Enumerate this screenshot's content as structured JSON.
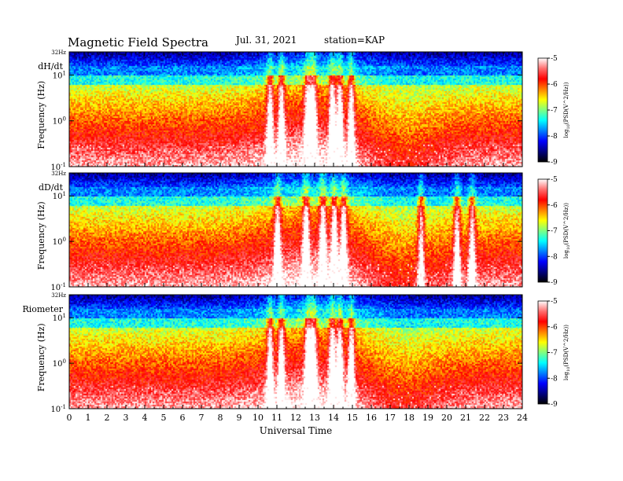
{
  "header": {
    "title": "Magnetic  Field  Spectra",
    "date": "Jul.  31, 2021",
    "station": "station=KAP"
  },
  "colors": {
    "colormap": [
      "#000000",
      "#00007f",
      "#0000ff",
      "#0080ff",
      "#00ffff",
      "#80ff80",
      "#ffff00",
      "#ff8000",
      "#ff0000",
      "#ff6e6e",
      "#ffffff"
    ]
  },
  "chart_data": [
    {
      "type": "heatmap",
      "panel_label": "dH/dt",
      "top_label": "32Hz",
      "ylabel": "Frequency  (Hz)",
      "y_scale": "log",
      "y_ticks": [
        {
          "base": "10",
          "exp": "1"
        },
        {
          "base": "10",
          "exp": "0"
        },
        {
          "base": "10",
          "exp": "-1"
        }
      ],
      "xlim": [
        0,
        24
      ],
      "ylim": [
        0.1,
        32
      ],
      "colorbar": {
        "ticks": [
          "-5",
          "-6",
          "-7",
          "-8",
          "-9"
        ],
        "label": "log10(PSD(V^2/Hz))",
        "range": [
          -9,
          -5
        ]
      },
      "activity_hours": [
        10.6,
        11.2,
        12.6,
        12.9,
        13.9,
        14.3,
        14.9
      ]
    },
    {
      "type": "heatmap",
      "panel_label": "dD/dt",
      "top_label": "32Hz",
      "ylabel": "Frequency  (Hz)",
      "y_scale": "log",
      "y_ticks": [
        {
          "base": "10",
          "exp": "1"
        },
        {
          "base": "10",
          "exp": "0"
        },
        {
          "base": "10",
          "exp": "-1"
        }
      ],
      "xlim": [
        0,
        24
      ],
      "ylim": [
        0.1,
        32
      ],
      "colorbar": {
        "ticks": [
          "-5",
          "-6",
          "-7",
          "-8",
          "-9"
        ],
        "label": "log10(PSD(V^2/Hz))",
        "range": [
          -9,
          -5
        ]
      },
      "activity_hours": [
        11.0,
        12.5,
        13.4,
        14.0,
        14.5,
        18.6,
        20.5,
        21.3
      ]
    },
    {
      "type": "heatmap",
      "panel_label": "Riometer",
      "top_label": "32Hz",
      "ylabel": "Frequency  (Hz)",
      "y_scale": "log",
      "y_ticks": [
        {
          "base": "10",
          "exp": "1"
        },
        {
          "base": "10",
          "exp": "0"
        },
        {
          "base": "10",
          "exp": "-1"
        }
      ],
      "xlim": [
        0,
        24
      ],
      "ylim": [
        0.1,
        32
      ],
      "colorbar": {
        "ticks": [
          "-5",
          "-6",
          "-7",
          "-8",
          "-9"
        ],
        "label": "log10(PSD(V^2/Hz))",
        "range": [
          -9,
          -5
        ]
      },
      "activity_hours": [
        10.6,
        11.2,
        12.6,
        12.9,
        13.9,
        14.3,
        14.9
      ]
    }
  ],
  "x_axis": {
    "label": "Universal Time",
    "ticks": [
      "0",
      "1",
      "2",
      "3",
      "4",
      "5",
      "6",
      "7",
      "8",
      "9",
      "10",
      "11",
      "12",
      "13",
      "14",
      "15",
      "16",
      "17",
      "18",
      "19",
      "20",
      "21",
      "22",
      "23",
      "24"
    ]
  }
}
